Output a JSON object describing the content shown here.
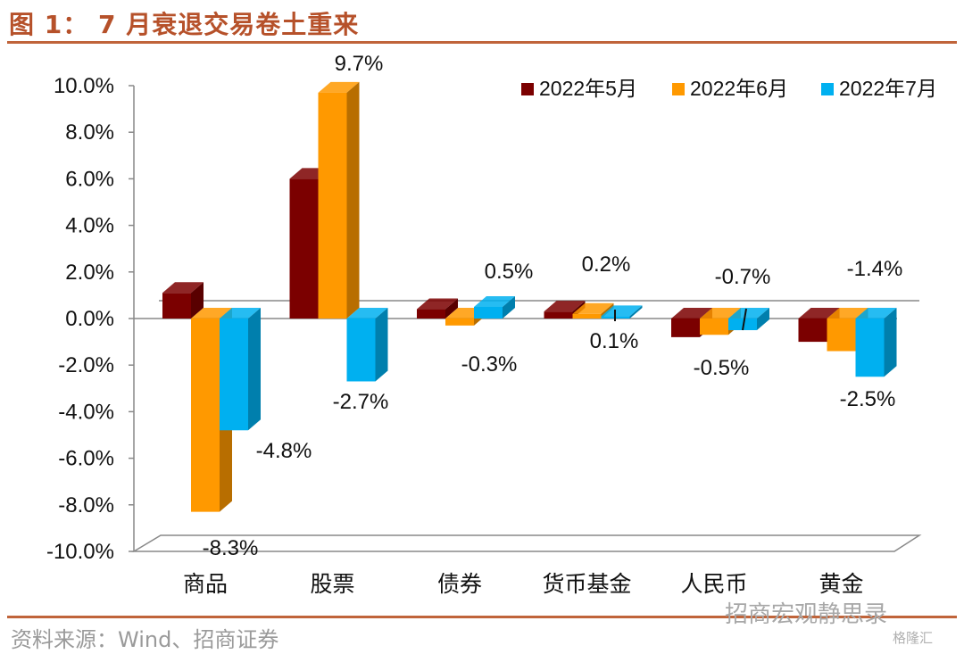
{
  "header": {
    "title": "图 1： 7 月衰退交易卷土重来"
  },
  "footer": {
    "source": "资料来源：Wind、招商证券",
    "watermark": "招商宏观静思录",
    "watermark2": "格隆汇"
  },
  "colors": {
    "may": "#7b0000",
    "jun": "#ff9900",
    "jul": "#00b0f0",
    "accent": "#c0643a"
  },
  "chart_data": {
    "type": "bar",
    "categories": [
      "商品",
      "股票",
      "债券",
      "货币基金",
      "人民币",
      "黄金"
    ],
    "series": [
      {
        "name": "2022年5月",
        "values": [
          1.1,
          6.0,
          0.4,
          0.3,
          -0.8,
          -1.0
        ]
      },
      {
        "name": "2022年6月",
        "values": [
          -8.3,
          9.7,
          -0.3,
          0.2,
          -0.7,
          -1.4
        ]
      },
      {
        "name": "2022年7月",
        "values": [
          -4.8,
          -2.7,
          0.5,
          0.1,
          -0.5,
          -2.5
        ]
      }
    ],
    "data_labels": [
      {
        "text": "-8.3%",
        "category": 0,
        "series": 1
      },
      {
        "text": "-4.8%",
        "category": 0,
        "series": 2
      },
      {
        "text": "9.7%",
        "category": 1,
        "series": 1
      },
      {
        "text": "-2.7%",
        "category": 1,
        "series": 2
      },
      {
        "text": "-0.3%",
        "category": 2,
        "series": 1
      },
      {
        "text": "0.5%",
        "category": 2,
        "series": 2
      },
      {
        "text": "0.2%",
        "category": 3,
        "series": 1
      },
      {
        "text": "0.1%",
        "category": 3,
        "series": 2
      },
      {
        "text": "-0.7%",
        "category": 4,
        "series": 1
      },
      {
        "text": "-0.5%",
        "category": 4,
        "series": 2
      },
      {
        "text": "-1.4%",
        "category": 5,
        "series": 1
      },
      {
        "text": "-2.5%",
        "category": 5,
        "series": 2
      }
    ],
    "y_ticks": [
      "10.0%",
      "8.0%",
      "6.0%",
      "4.0%",
      "2.0%",
      "0.0%",
      "-2.0%",
      "-4.0%",
      "-6.0%",
      "-8.0%",
      "-10.0%"
    ],
    "ylim": [
      -10,
      10
    ],
    "legend_position": "top-right",
    "grid": false
  }
}
